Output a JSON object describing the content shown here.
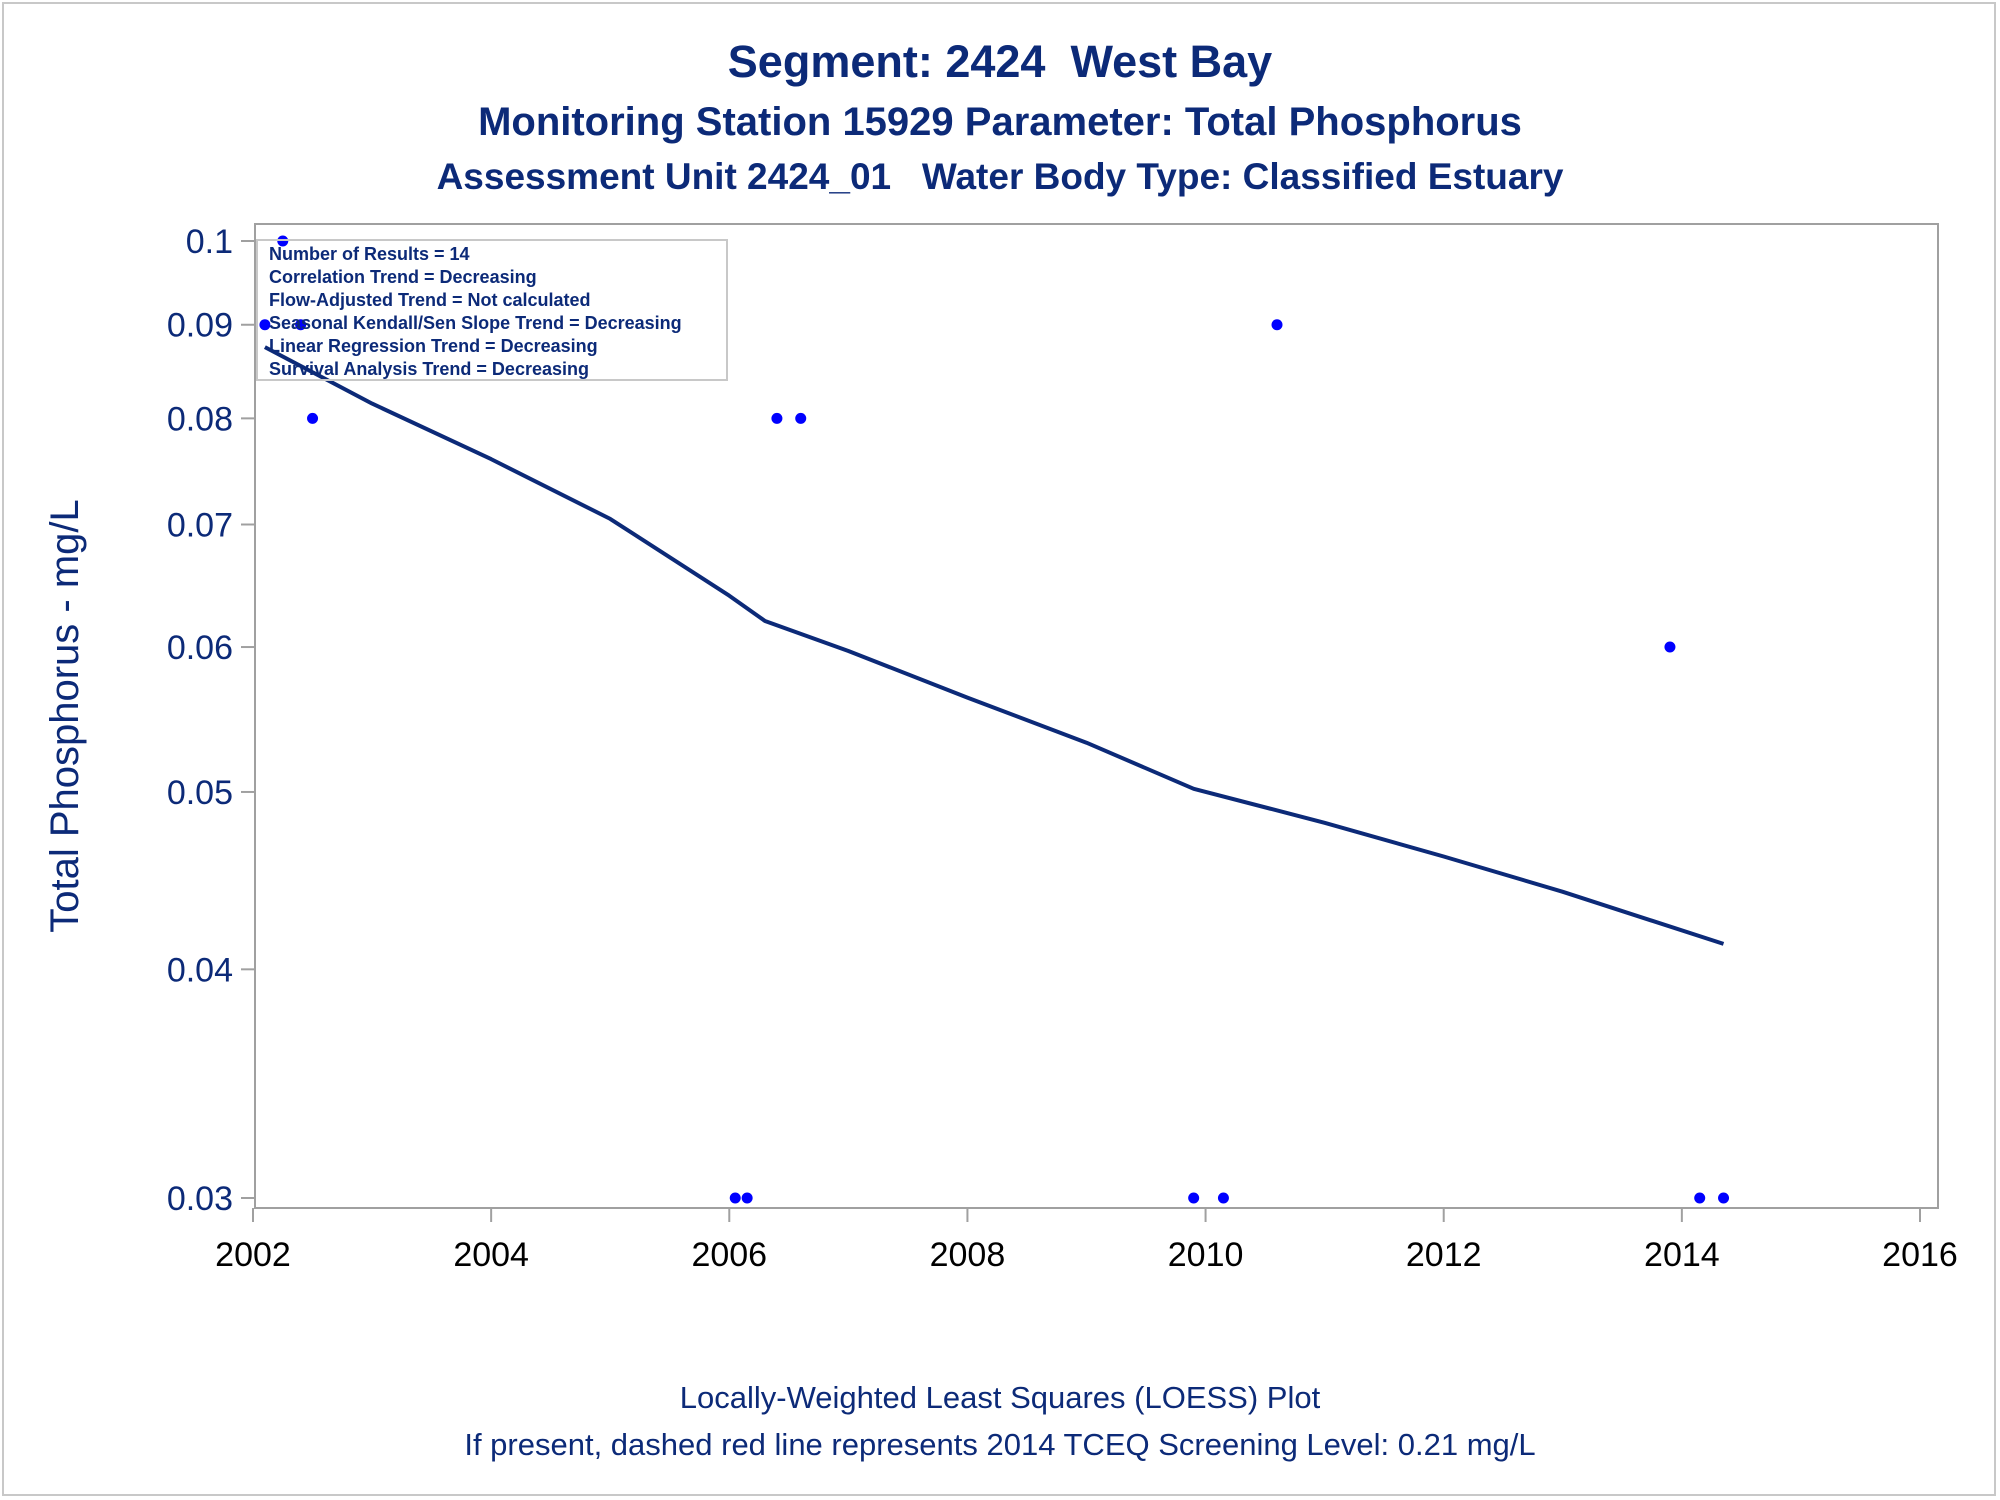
{
  "chart_data": {
    "type": "scatter",
    "title": "Segment: 2424  West Bay",
    "subtitle_1": "Monitoring Station 15929 Parameter: Total Phosphorus",
    "subtitle_2": "Assessment Unit 2424_01   Water Body Type: Classified Estuary",
    "ylabel": "Total Phosphorus - mg/L",
    "xlabel": "",
    "y_scale": "log",
    "xlim": [
      2002,
      2016
    ],
    "ylim": [
      0.03,
      0.1
    ],
    "x_ticks": [
      "2002",
      "2004",
      "2006",
      "2008",
      "2010",
      "2012",
      "2014",
      "2016"
    ],
    "y_ticks": [
      "0.1",
      "0.09",
      "0.08",
      "0.07",
      "0.06",
      "0.05",
      "0.04",
      "0.03"
    ],
    "grid": false,
    "colors": {
      "points": "#0000ff",
      "trend": "#0c2a78",
      "text": "#0c2a78",
      "frame": "#a0a0a0"
    },
    "points": [
      {
        "x": 2002.1,
        "y": 0.09
      },
      {
        "x": 2002.25,
        "y": 0.1
      },
      {
        "x": 2002.4,
        "y": 0.09
      },
      {
        "x": 2002.5,
        "y": 0.08
      },
      {
        "x": 2006.05,
        "y": 0.03
      },
      {
        "x": 2006.15,
        "y": 0.03
      },
      {
        "x": 2006.4,
        "y": 0.08
      },
      {
        "x": 2006.6,
        "y": 0.08
      },
      {
        "x": 2009.9,
        "y": 0.03
      },
      {
        "x": 2010.15,
        "y": 0.03
      },
      {
        "x": 2010.6,
        "y": 0.09
      },
      {
        "x": 2013.9,
        "y": 0.06
      },
      {
        "x": 2014.15,
        "y": 0.03
      },
      {
        "x": 2014.35,
        "y": 0.03
      }
    ],
    "loess_trend": [
      {
        "x": 2002.1,
        "y": 0.0875
      },
      {
        "x": 2003,
        "y": 0.0815
      },
      {
        "x": 2004,
        "y": 0.076
      },
      {
        "x": 2005,
        "y": 0.0705
      },
      {
        "x": 2006,
        "y": 0.064
      },
      {
        "x": 2006.3,
        "y": 0.062
      },
      {
        "x": 2007,
        "y": 0.0597
      },
      {
        "x": 2008,
        "y": 0.0563
      },
      {
        "x": 2009,
        "y": 0.0532
      },
      {
        "x": 2009.9,
        "y": 0.0502
      },
      {
        "x": 2011,
        "y": 0.0481
      },
      {
        "x": 2012,
        "y": 0.0461
      },
      {
        "x": 2013,
        "y": 0.0441
      },
      {
        "x": 2014.35,
        "y": 0.0413
      }
    ],
    "legend_position": "top-left",
    "legend": [
      "Number of Results = 14",
      "Correlation Trend = Decreasing",
      "Flow-Adjusted Trend = Not calculated",
      "Seasonal Kendall/Sen Slope Trend = Decreasing",
      "Linear Regression Trend = Decreasing",
      "Survival Analysis Trend = Decreasing"
    ],
    "footnote_1": "Locally-Weighted Least Squares (LOESS) Plot",
    "footnote_2": "If present, dashed red line represents 2014 TCEQ Screening Level: 0.21 mg/L"
  }
}
